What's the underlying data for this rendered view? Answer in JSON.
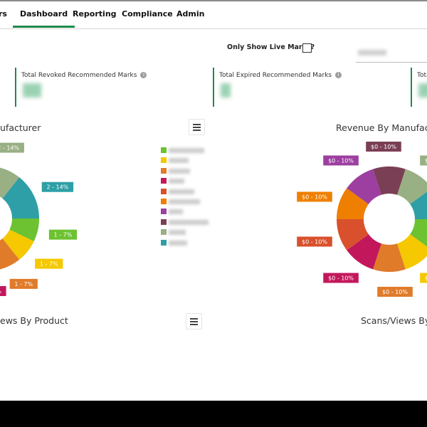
{
  "nav": {
    "tabs": [
      {
        "label": "rs",
        "active": false
      },
      {
        "label": "Dashboard",
        "active": true
      },
      {
        "label": "Reporting",
        "active": false
      },
      {
        "label": "Compliance",
        "active": false
      },
      {
        "label": "Admin",
        "active": false
      }
    ]
  },
  "filters": {
    "live_marks_label": "Only Show Live Marks?",
    "live_marks_checked": false
  },
  "kpis": [
    {
      "title": "Total Revoked Recommended Marks"
    },
    {
      "title": "Total Expired Recommended Marks"
    },
    {
      "title": "Tota"
    }
  ],
  "charts": {
    "scans_by_manufacturer_title": "ufacturer",
    "revenue_by_manufacturer_title": "Revenue By Manufact",
    "scans_by_product_title": "ews By Product",
    "scans_by_other_title": "Scans/Views By"
  },
  "chart_data": [
    {
      "type": "pie",
      "title": "Scans/Views By Manufacturer",
      "donut": true,
      "colors": [
        "#6cc230",
        "#f5c800",
        "#e07b2a",
        "#c2185b",
        "#d9512c",
        "#ef7f00",
        "#9c3fa0",
        "#7b3f55",
        "#98b084",
        "#2e9fa6"
      ],
      "values": [
        1,
        1,
        1,
        1,
        2,
        2,
        1,
        1,
        2,
        2
      ],
      "labels": [
        "1 - 7%",
        "1 - 7%",
        "1 - 7%",
        "1 - 7%",
        "2 - 14%",
        "2 - 14%",
        "1 - 7%",
        "1 - 7%",
        "2 - 14%",
        "2 - 14%"
      ]
    },
    {
      "type": "pie",
      "title": "Revenue By Manufacturer",
      "donut": true,
      "colors": [
        "#6cc230",
        "#f5c800",
        "#e07b2a",
        "#c2185b",
        "#d9512c",
        "#ef7f00",
        "#9c3fa0",
        "#7b3f55",
        "#98b084",
        "#2e9fa6"
      ],
      "values": [
        1,
        1,
        1,
        1,
        1,
        1,
        1,
        1,
        1,
        1
      ],
      "labels": [
        "$0 - 10%",
        "$0 - 10%",
        "$0 - 10%",
        "$0 - 10%",
        "$0 - 10%",
        "$0 - 10%",
        "$0 - 10%",
        "$0 - 10%",
        "$0 - 10%",
        "$0 - 10%"
      ]
    }
  ]
}
